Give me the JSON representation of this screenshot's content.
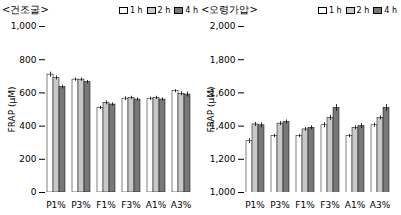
{
  "chart_data": [
    {
      "type": "bar",
      "title": "<건조굴>",
      "ylabel": "FRAP (μM)",
      "categories": [
        "P1%",
        "P3%",
        "F1%",
        "F3%",
        "A1%",
        "A3%"
      ],
      "series": [
        {
          "name": "1 h",
          "color": "white",
          "values": [
            710,
            680,
            510,
            565,
            565,
            610
          ],
          "errors": [
            15,
            10,
            10,
            12,
            10,
            10
          ]
        },
        {
          "name": "2 h",
          "color": "#c8c8c8",
          "values": [
            690,
            680,
            540,
            570,
            570,
            595
          ],
          "errors": [
            12,
            10,
            12,
            10,
            10,
            12
          ]
        },
        {
          "name": "4 h",
          "color": "#787878",
          "values": [
            635,
            665,
            530,
            560,
            560,
            590
          ],
          "errors": [
            12,
            10,
            10,
            10,
            10,
            15
          ]
        }
      ],
      "ylim": [
        0,
        1000
      ],
      "yticks": [
        0,
        200,
        400,
        600,
        800,
        1000
      ],
      "legend": "upper right"
    },
    {
      "type": "bar",
      "title": "<오령가압>",
      "ylabel": "FRAP (μM)",
      "categories": [
        "P1%",
        "P3%",
        "F1%",
        "F3%",
        "A1%",
        "A3%"
      ],
      "series": [
        {
          "name": "1 h",
          "color": "white",
          "values": [
            1310,
            1340,
            1340,
            1405,
            1340,
            1405
          ],
          "errors": [
            15,
            10,
            10,
            15,
            10,
            12
          ]
        },
        {
          "name": "2 h",
          "color": "#c8c8c8",
          "values": [
            1410,
            1415,
            1380,
            1450,
            1390,
            1450
          ],
          "errors": [
            12,
            12,
            12,
            15,
            12,
            12
          ]
        },
        {
          "name": "4 h",
          "color": "#787878",
          "values": [
            1405,
            1425,
            1390,
            1510,
            1400,
            1510
          ],
          "errors": [
            15,
            12,
            12,
            20,
            15,
            20
          ]
        }
      ],
      "ylim": [
        1000,
        2000
      ],
      "yticks": [
        1000,
        1200,
        1400,
        1600,
        1800,
        2000
      ],
      "legend": "upper right"
    }
  ]
}
